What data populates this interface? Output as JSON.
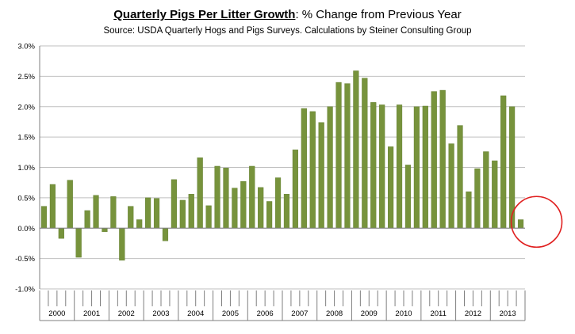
{
  "title": {
    "main": "Quarterly Pigs Per Litter Growth",
    "rest": ": % Change from Previous Year"
  },
  "subtitle": "Source:  USDA Quarterly Hogs and Pigs Surveys.  Calculations by Steiner Consulting Group",
  "colors": {
    "bar": "#77933C",
    "bar_edge": "#5E7A2C",
    "grid": "#BFBFBF",
    "axis": "#7F7F7F",
    "highlight": "#E02020"
  },
  "chart_data": {
    "type": "bar",
    "title": "Quarterly Pigs Per Litter Growth: % Change from Previous Year",
    "xlabel": "",
    "ylabel": "",
    "ylim": [
      -1.0,
      3.0
    ],
    "yticks": [
      -1.0,
      -0.5,
      0.0,
      0.5,
      1.0,
      1.5,
      2.0,
      2.5,
      3.0
    ],
    "ytick_labels": [
      "-1.0%",
      "-0.5%",
      "0.0%",
      "0.5%",
      "1.0%",
      "1.5%",
      "2.0%",
      "2.5%",
      "3.0%"
    ],
    "grid": true,
    "years": [
      "2000",
      "2001",
      "2002",
      "2003",
      "2004",
      "2005",
      "2006",
      "2007",
      "2008",
      "2009",
      "2010",
      "2011",
      "2012",
      "2013"
    ],
    "values": [
      0.36,
      0.72,
      -0.17,
      0.79,
      -0.48,
      0.29,
      0.54,
      -0.06,
      0.52,
      -0.53,
      0.36,
      0.14,
      0.5,
      0.49,
      -0.21,
      0.8,
      0.46,
      0.56,
      1.16,
      0.37,
      1.02,
      0.99,
      0.66,
      0.77,
      1.02,
      0.67,
      0.44,
      0.83,
      0.56,
      1.29,
      1.97,
      1.92,
      1.74,
      2.0,
      2.4,
      2.38,
      2.59,
      2.47,
      2.07,
      2.03,
      1.34,
      2.03,
      1.04,
      2.0,
      2.01,
      2.25,
      2.27,
      1.39,
      1.69,
      0.6,
      0.98,
      1.26,
      1.11,
      2.18,
      2.0,
      0.14
    ],
    "annotation": "red circle highlighting latest quarter value"
  }
}
